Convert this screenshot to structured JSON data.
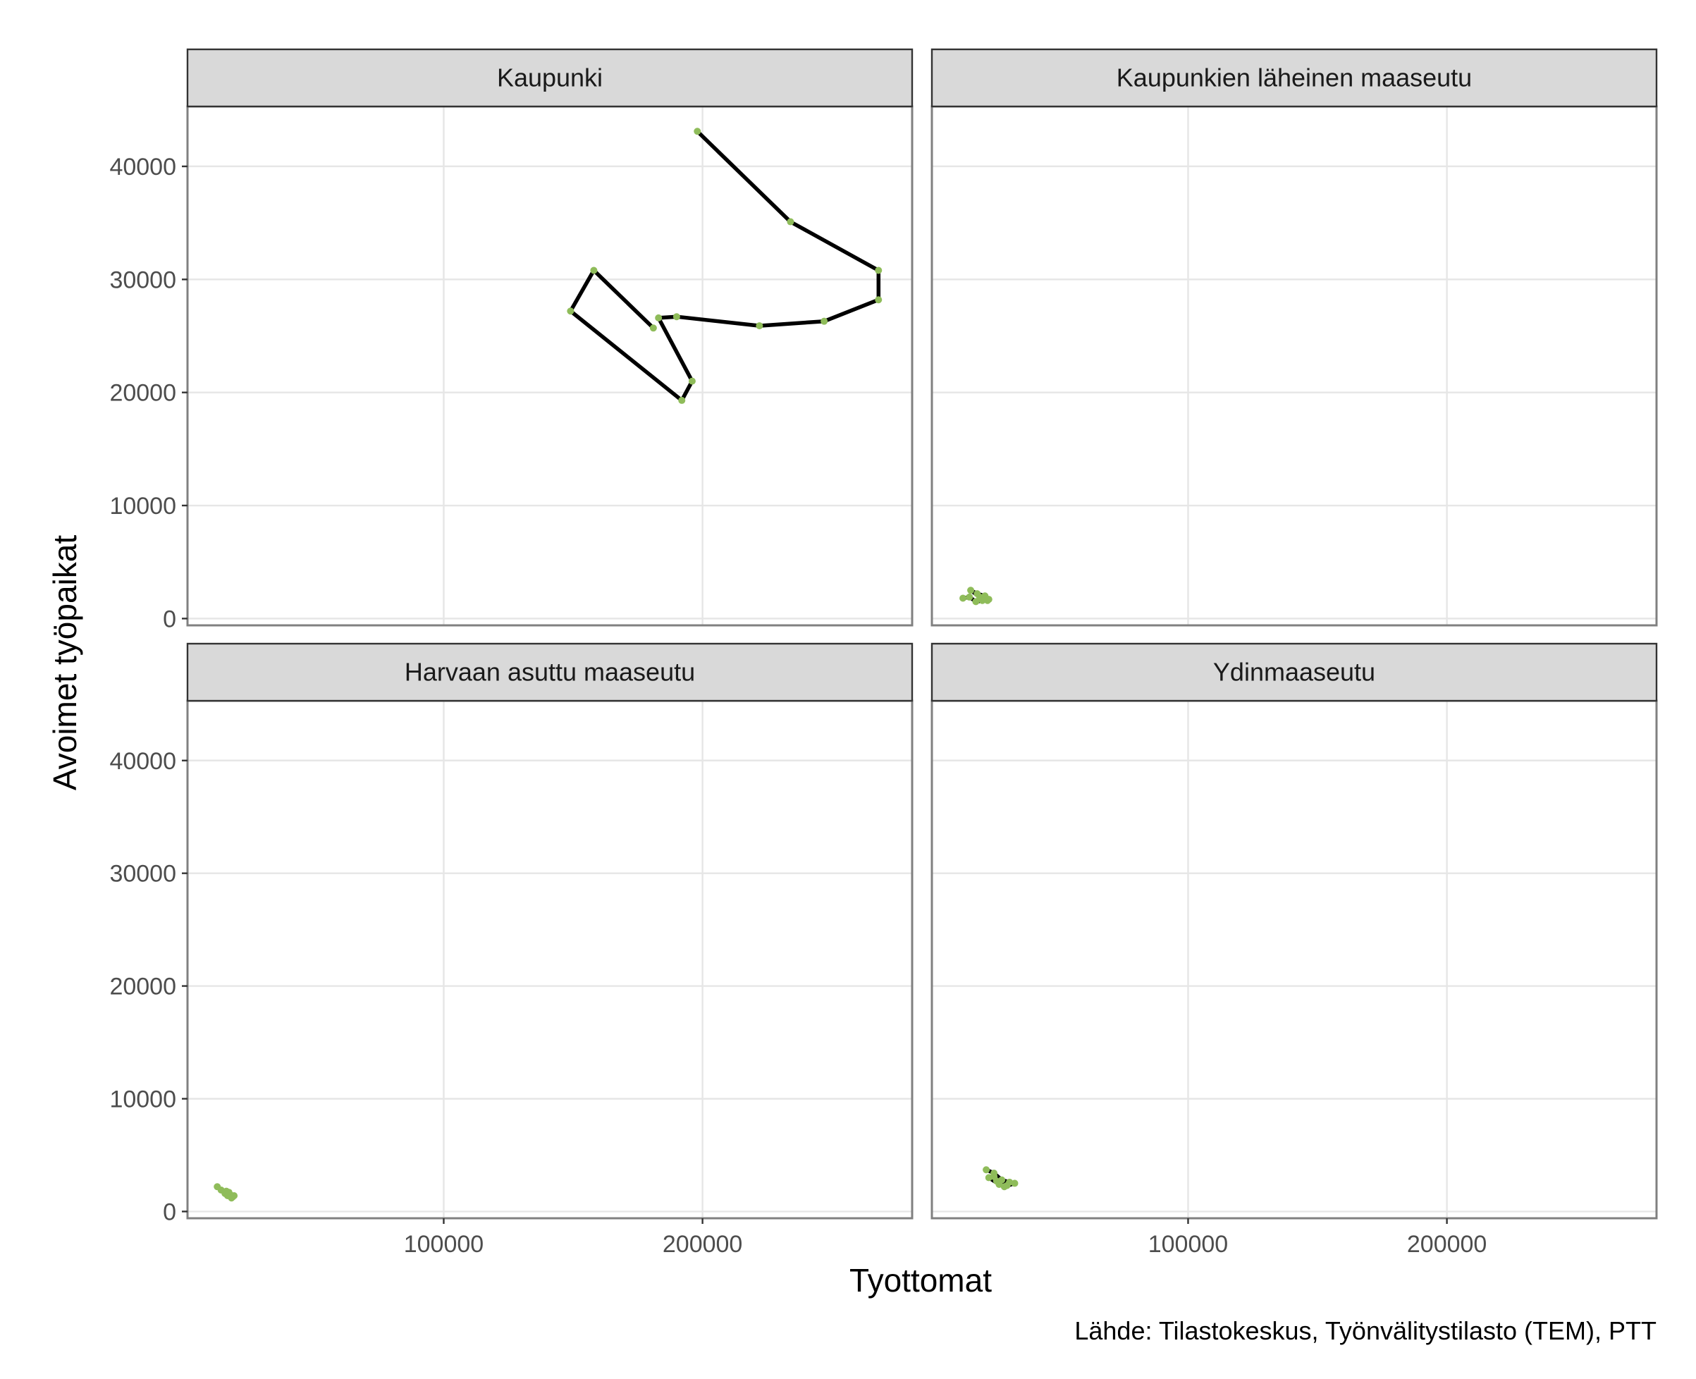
{
  "chart_data": {
    "type": "line",
    "facets": [
      {
        "label": "Kaupunki",
        "x": [
          181000,
          158000,
          149000,
          192000,
          196000,
          183000,
          190000,
          222000,
          247000,
          268000,
          268000,
          234000,
          198000
        ],
        "y": [
          25700,
          30800,
          27200,
          19300,
          21000,
          26600,
          26700,
          25900,
          26300,
          28200,
          30800,
          35100,
          43100
        ]
      },
      {
        "label": "Kaupunkien läheinen maaseutu",
        "x": [
          13000,
          15500,
          18000,
          22500,
          19500,
          16000,
          18500,
          21500,
          23000,
          20500
        ],
        "y": [
          1800,
          1900,
          1500,
          1600,
          1900,
          2500,
          2200,
          2000,
          1700,
          1600
        ]
      },
      {
        "label": "Harvaan asuttu maaseutu",
        "x": [
          12500,
          14000,
          15500,
          16500,
          18500,
          17500,
          16000,
          17000,
          19000,
          18000
        ],
        "y": [
          2200,
          1900,
          1600,
          1400,
          1300,
          1500,
          1800,
          1700,
          1400,
          1200
        ]
      },
      {
        "label": "Ydinmaaseutu",
        "x": [
          22000,
          25000,
          28000,
          31000,
          33000,
          29000,
          26000,
          23000,
          27000,
          30000,
          25000
        ],
        "y": [
          3700,
          3400,
          2800,
          2600,
          2500,
          2200,
          2700,
          3000,
          2400,
          2300,
          3100
        ]
      }
    ],
    "xlabel": "Tyottomat",
    "ylabel": "Avoimet työpaikat",
    "x_ticks": [
      100000,
      200000
    ],
    "y_ticks": [
      0,
      10000,
      20000,
      30000,
      40000
    ],
    "xlim": [
      1000,
      281000
    ],
    "ylim": [
      -600,
      45300
    ],
    "grid": true,
    "line_color": "#000000",
    "point_color": "#8fbc5a",
    "panel_border_color": "#808080",
    "grid_color": "#e6e6e6",
    "strip_fill": "#d9d9d9",
    "caption": "Lähde: Tilastokeskus, Työnvälitystilasto (TEM), PTT"
  }
}
